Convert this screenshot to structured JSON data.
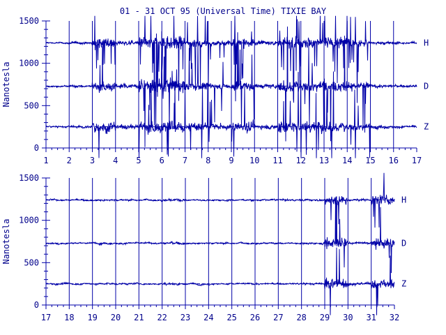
{
  "chart_data": {
    "type": "line",
    "title": "01 - 31 OCT 95 (Universal Time) TIXIE BAY",
    "ylabel": "Nanotesla",
    "color": "#0000a8",
    "panels": [
      {
        "xlim": [
          1,
          17
        ],
        "ylim": [
          0,
          1500
        ],
        "xticks": [
          "1",
          "2",
          "3",
          "4",
          "5",
          "6",
          "7",
          "8",
          "9",
          "10",
          "11",
          "12",
          "13",
          "14",
          "15",
          "16",
          "17"
        ],
        "yticks": [
          "0",
          "500",
          "1000",
          "1500"
        ],
        "series": [
          {
            "name": "H",
            "baseline": 1240
          },
          {
            "name": "D",
            "baseline": 730
          },
          {
            "name": "Z",
            "baseline": 250
          }
        ],
        "activity": [
          0.1,
          0.3,
          0.9,
          0.5,
          1.0,
          1.0,
          0.7,
          0.6,
          0.9,
          0.5,
          1.0,
          0.9,
          0.9,
          0.7,
          0.4,
          0.3,
          0.3,
          0.3,
          0.7,
          0.9,
          0.4,
          0.3,
          0.2,
          0.2,
          0.3,
          0.2,
          0.4,
          0.2,
          0.1,
          0.1,
          0.1,
          0.6
        ]
      },
      {
        "xlim": [
          17,
          32
        ],
        "ylim": [
          0,
          1500
        ],
        "xticks": [
          "17",
          "18",
          "19",
          "20",
          "21",
          "22",
          "23",
          "24",
          "25",
          "26",
          "27",
          "28",
          "29",
          "30",
          "31",
          "32"
        ],
        "yticks": [
          "0",
          "500",
          "1000",
          "1500"
        ],
        "series": [
          {
            "name": "H",
            "baseline": 1240
          },
          {
            "name": "D",
            "baseline": 730
          },
          {
            "name": "Z",
            "baseline": 250
          }
        ],
        "activity": [
          0.1,
          0.2,
          0.3,
          0.8,
          1.0,
          0.8,
          0.4,
          0.9,
          0.7,
          0.6,
          0.4,
          0.8,
          0.8,
          0.3,
          0.2,
          0.1,
          0.1,
          0.1,
          0.2,
          0.1,
          0.1,
          0.3,
          0.1,
          0.1,
          0.1,
          0.1,
          0.1,
          0.2,
          0.9,
          0.3,
          0.9,
          0.8
        ]
      }
    ]
  }
}
